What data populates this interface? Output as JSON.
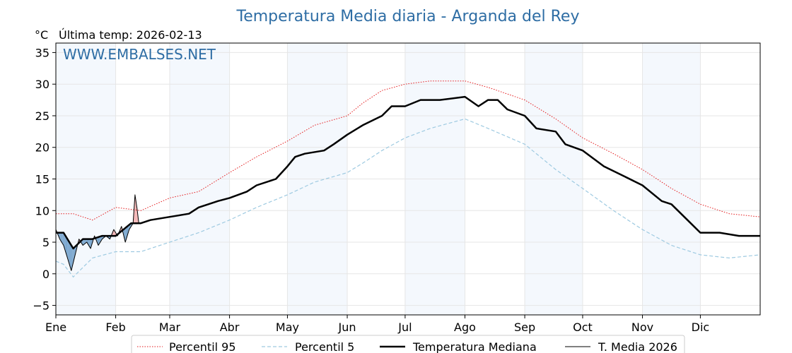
{
  "page": {
    "title": "Temperatura Media diaria - Arganda del Rey",
    "unit_label": "°C",
    "last_temp": "Última temp: 2026-02-13",
    "watermark": "WWW.EMBALSES.NET"
  },
  "chart_data": {
    "type": "line",
    "title": "Temperatura Media diaria - Arganda del Rey",
    "ylabel": "°C",
    "xlabel": "",
    "ylim": [
      -6.5,
      36.5
    ],
    "xlim": [
      1,
      366
    ],
    "yticks": [
      -5,
      0,
      5,
      10,
      15,
      20,
      25,
      30,
      35
    ],
    "grid": true,
    "legend_position": "bottom-center",
    "months": [
      {
        "label": "Ene",
        "day": 1
      },
      {
        "label": "Feb",
        "day": 32
      },
      {
        "label": "Mar",
        "day": 60
      },
      {
        "label": "Abr",
        "day": 91
      },
      {
        "label": "May",
        "day": 121
      },
      {
        "label": "Jun",
        "day": 152
      },
      {
        "label": "Jul",
        "day": 182
      },
      {
        "label": "Ago",
        "day": 213
      },
      {
        "label": "Sep",
        "day": 244
      },
      {
        "label": "Oct",
        "day": 274
      },
      {
        "label": "Nov",
        "day": 305
      },
      {
        "label": "Dic",
        "day": 335
      }
    ],
    "shaded_months": [
      "Ene",
      "Mar",
      "May",
      "Jul",
      "Sep",
      "Nov"
    ],
    "series": [
      {
        "name": "Percentil 95",
        "color": "#e41a1c",
        "style": "dotted",
        "x": [
          1,
          10,
          20,
          32,
          45,
          60,
          75,
          91,
          105,
          121,
          135,
          152,
          160,
          170,
          182,
          195,
          213,
          225,
          244,
          260,
          274,
          290,
          305,
          320,
          335,
          350,
          366
        ],
        "values": [
          9.5,
          9.5,
          8.5,
          10.5,
          10,
          12,
          13,
          16,
          18.5,
          21,
          23.5,
          25,
          27,
          29,
          30,
          30.5,
          30.5,
          29.5,
          27.5,
          24.5,
          21.5,
          19,
          16.5,
          13.5,
          11,
          9.5,
          9
        ]
      },
      {
        "name": "Percentil 5",
        "color": "#9ecae1",
        "style": "dashed",
        "x": [
          1,
          5,
          10,
          20,
          32,
          45,
          60,
          75,
          91,
          105,
          121,
          135,
          152,
          160,
          170,
          182,
          195,
          213,
          225,
          244,
          260,
          274,
          290,
          305,
          320,
          335,
          350,
          366
        ],
        "values": [
          2,
          1.5,
          -0.5,
          2.5,
          3.5,
          3.5,
          5,
          6.5,
          8.5,
          10.5,
          12.5,
          14.5,
          16,
          17.5,
          19.5,
          21.5,
          23,
          24.5,
          23,
          20.5,
          16.5,
          13.5,
          10,
          7,
          4.5,
          3,
          2.5,
          3
        ]
      },
      {
        "name": "Temperatura Mediana",
        "color": "#000000",
        "style": "thick",
        "x": [
          1,
          5,
          10,
          15,
          20,
          25,
          32,
          40,
          45,
          50,
          60,
          70,
          75,
          80,
          85,
          91,
          100,
          105,
          115,
          121,
          125,
          130,
          140,
          145,
          152,
          160,
          170,
          175,
          182,
          190,
          200,
          213,
          220,
          225,
          230,
          235,
          244,
          250,
          260,
          265,
          274,
          285,
          295,
          305,
          315,
          320,
          330,
          335,
          345,
          355,
          366
        ],
        "values": [
          6.5,
          6.5,
          4,
          5.5,
          5.5,
          6,
          6,
          8,
          8,
          8.5,
          9,
          9.5,
          10.5,
          11,
          11.5,
          12,
          13,
          14,
          15,
          17,
          18.5,
          19,
          19.5,
          20.5,
          22,
          23.5,
          25,
          26.5,
          26.5,
          27.5,
          27.5,
          28,
          26.5,
          27.5,
          27.5,
          26,
          25,
          23,
          22.5,
          20.5,
          19.5,
          17,
          15.5,
          14,
          11.5,
          11,
          8,
          6.5,
          6.5,
          6,
          6
        ]
      },
      {
        "name": "T. Media 2026",
        "color": "#000000",
        "style": "thin",
        "x": [
          1,
          3,
          5,
          7,
          9,
          11,
          13,
          15,
          17,
          19,
          21,
          23,
          25,
          27,
          29,
          31,
          33,
          35,
          37,
          39,
          41,
          42,
          43,
          44
        ],
        "values": [
          7,
          5.5,
          4.5,
          2.5,
          0.5,
          3,
          5.5,
          4.5,
          5,
          4,
          6,
          4.5,
          5.5,
          6,
          5.5,
          7,
          6,
          7.5,
          5,
          7,
          8,
          12.5,
          10.5,
          8
        ]
      }
    ]
  }
}
